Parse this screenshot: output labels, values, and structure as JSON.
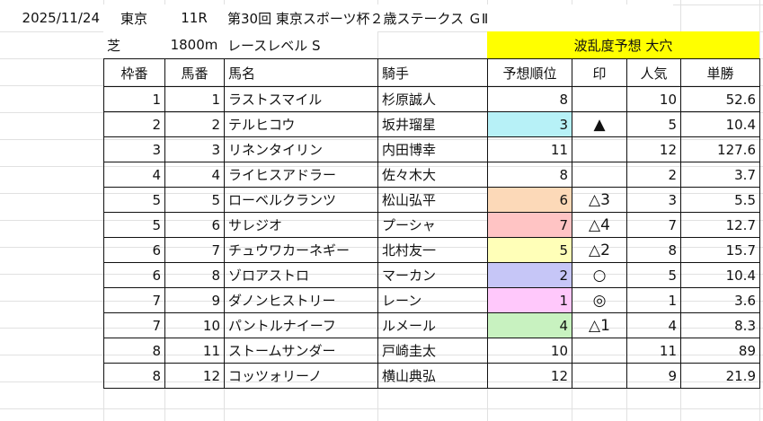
{
  "race": {
    "date": "2025/11/24",
    "venue": "東京",
    "race_no": "11R",
    "title": "第30回 東京スポーツ杯２歳ステークス ＧⅡ",
    "surface": "芝",
    "distance": "1800m",
    "level": "レースレベル S",
    "upset_forecast": "波乱度予想 大穴"
  },
  "headers": [
    "枠番",
    "馬番",
    "馬名",
    "騎手",
    "予想順位",
    "印",
    "人気",
    "単勝"
  ],
  "rows": [
    {
      "waku": "1",
      "umaban": "1",
      "name": "ラストスマイル",
      "jockey": "杉原誠人",
      "rank": "8",
      "mark": "",
      "pop": "10",
      "odds": "52.6",
      "color": ""
    },
    {
      "waku": "2",
      "umaban": "2",
      "name": "テルヒコウ",
      "jockey": "坂井瑠星",
      "rank": "3",
      "mark": "▲",
      "pop": "5",
      "odds": "10.4",
      "color": "#b7f1f7"
    },
    {
      "waku": "3",
      "umaban": "3",
      "name": "リネンタイリン",
      "jockey": "内田博幸",
      "rank": "11",
      "mark": "",
      "pop": "12",
      "odds": "127.6",
      "color": ""
    },
    {
      "waku": "4",
      "umaban": "4",
      "name": "ライヒスアドラー",
      "jockey": "佐々木大",
      "rank": "8",
      "mark": "",
      "pop": "2",
      "odds": "3.7",
      "color": ""
    },
    {
      "waku": "5",
      "umaban": "5",
      "name": "ローベルクランツ",
      "jockey": "松山弘平",
      "rank": "6",
      "mark": "△3",
      "pop": "3",
      "odds": "5.5",
      "color": "#fcd9b8"
    },
    {
      "waku": "5",
      "umaban": "6",
      "name": "サレジオ",
      "jockey": "プーシャ",
      "rank": "7",
      "mark": "△4",
      "pop": "7",
      "odds": "12.7",
      "color": "#ffc4c4"
    },
    {
      "waku": "6",
      "umaban": "7",
      "name": "チュウワカーネギー",
      "jockey": "北村友一",
      "rank": "5",
      "mark": "△2",
      "pop": "8",
      "odds": "15.7",
      "color": "#ffffb8"
    },
    {
      "waku": "6",
      "umaban": "8",
      "name": "ゾロアストロ",
      "jockey": "マーカン",
      "rank": "2",
      "mark": "○",
      "pop": "5",
      "odds": "10.4",
      "color": "#c6c6f7"
    },
    {
      "waku": "7",
      "umaban": "9",
      "name": "ダノンヒストリー",
      "jockey": "レーン",
      "rank": "1",
      "mark": "◎",
      "pop": "1",
      "odds": "3.6",
      "color": "#ffc8fb"
    },
    {
      "waku": "7",
      "umaban": "10",
      "name": "パントルナイーフ",
      "jockey": "ルメール",
      "rank": "4",
      "mark": "△1",
      "pop": "4",
      "odds": "8.3",
      "color": "#c8f2c0"
    },
    {
      "waku": "8",
      "umaban": "11",
      "name": "ストームサンダー",
      "jockey": "戸崎圭太",
      "rank": "10",
      "mark": "",
      "pop": "11",
      "odds": "89",
      "color": ""
    },
    {
      "waku": "8",
      "umaban": "12",
      "name": "コッツォリーノ",
      "jockey": "横山典弘",
      "rank": "12",
      "mark": "",
      "pop": "9",
      "odds": "21.9",
      "color": ""
    }
  ]
}
